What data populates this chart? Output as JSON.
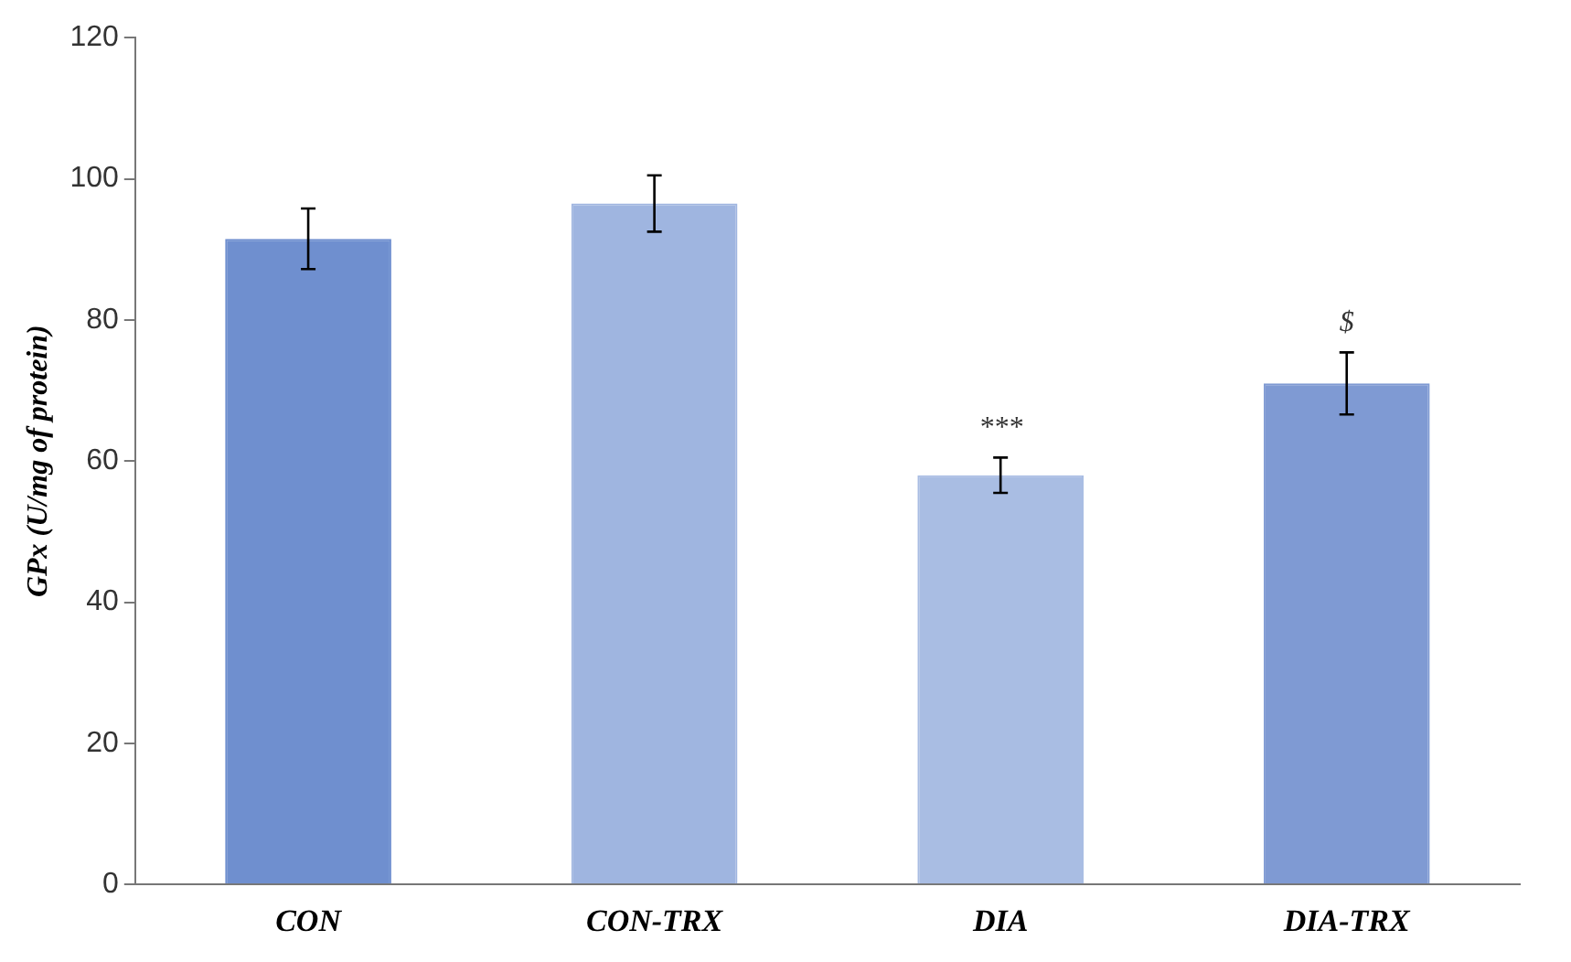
{
  "chart_data": {
    "type": "bar",
    "ylabel": "GPx (U/mg of protein)",
    "categories": [
      "CON",
      "CON-TRX",
      "DIA",
      "DIA-TRX"
    ],
    "values": [
      91.5,
      96.5,
      58,
      71
    ],
    "errors": [
      4.3,
      4,
      2.5,
      4.4
    ],
    "colors": [
      "#6f8fcf",
      "#9fb5e0",
      "#a9bde3",
      "#7f9ad3"
    ],
    "ylim": [
      0,
      120
    ],
    "yticks": [
      0,
      20,
      40,
      60,
      80,
      100,
      120
    ],
    "annotations": [
      "***",
      "$"
    ]
  }
}
